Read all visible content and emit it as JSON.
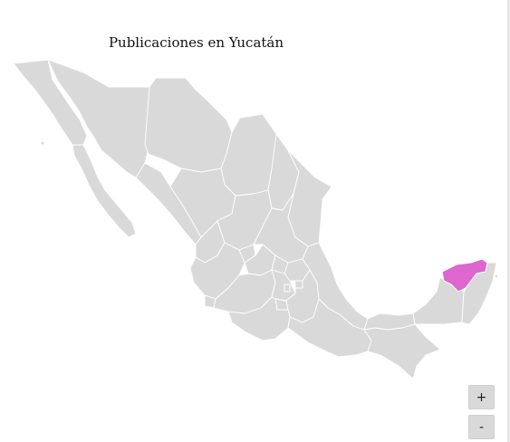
{
  "map": {
    "title": "Publicaciones en Yucatán",
    "highlighted_state": "Yucatán",
    "colors": {
      "land": "#d9d9d9",
      "border": "#ffffff",
      "highlight": "#dd66cf"
    }
  },
  "controls": {
    "zoom_in_label": "+",
    "zoom_out_label": "-"
  }
}
